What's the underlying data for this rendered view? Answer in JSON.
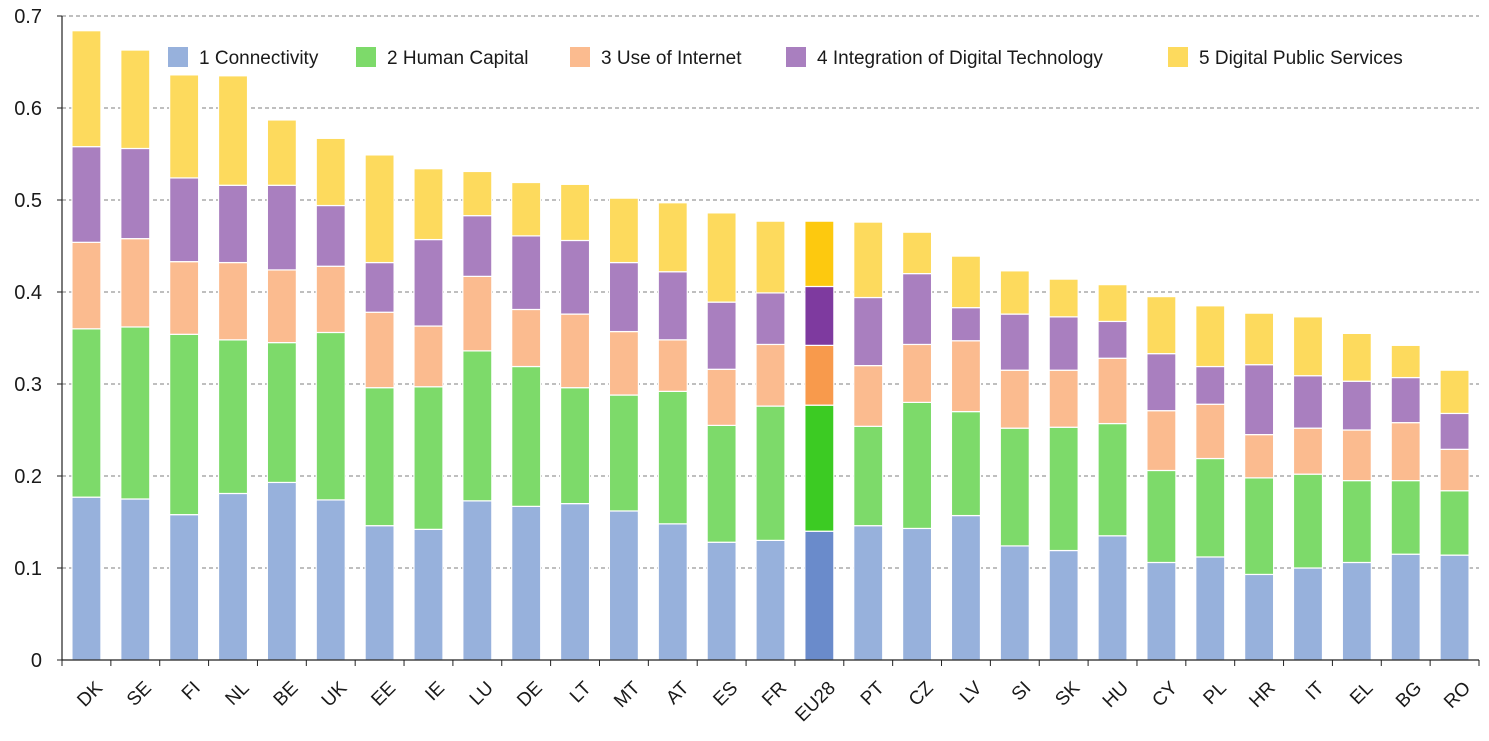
{
  "chart_data": {
    "type": "bar",
    "stacked": true,
    "title": "",
    "xlabel": "",
    "ylabel": "",
    "ylim": [
      0,
      0.7
    ],
    "yticks": [
      0,
      0.1,
      0.2,
      0.3,
      0.4,
      0.5,
      0.6,
      0.7
    ],
    "ytick_labels": [
      "0",
      "0.1",
      "0.2",
      "0.3",
      "0.4",
      "0.5",
      "0.6",
      "0.7"
    ],
    "grid": "horizontal dashed",
    "legend_position": "top",
    "highlight_category": "EU28",
    "categories": [
      "DK",
      "SE",
      "FI",
      "NL",
      "BE",
      "UK",
      "EE",
      "IE",
      "LU",
      "DE",
      "LT",
      "MT",
      "AT",
      "ES",
      "FR",
      "EU28",
      "PT",
      "CZ",
      "LV",
      "SI",
      "SK",
      "HU",
      "CY",
      "PL",
      "HR",
      "IT",
      "EL",
      "BG",
      "RO"
    ],
    "series": [
      {
        "name": "1 Connectivity",
        "color": "#97b1dc",
        "highlight_color": "#6a8bcb",
        "values": [
          0.177,
          0.175,
          0.158,
          0.181,
          0.193,
          0.174,
          0.146,
          0.142,
          0.173,
          0.167,
          0.17,
          0.162,
          0.148,
          0.128,
          0.13,
          0.14,
          0.146,
          0.143,
          0.157,
          0.124,
          0.119,
          0.135,
          0.106,
          0.112,
          0.093,
          0.1,
          0.106,
          0.115,
          0.114
        ]
      },
      {
        "name": "2 Human Capital",
        "color": "#7dda6a",
        "highlight_color": "#3ccb23",
        "values": [
          0.183,
          0.187,
          0.196,
          0.167,
          0.152,
          0.182,
          0.15,
          0.155,
          0.163,
          0.152,
          0.126,
          0.126,
          0.144,
          0.127,
          0.146,
          0.137,
          0.108,
          0.137,
          0.113,
          0.128,
          0.134,
          0.122,
          0.1,
          0.107,
          0.105,
          0.102,
          0.089,
          0.08,
          0.07
        ]
      },
      {
        "name": "3 Use of Internet",
        "color": "#fbbb8f",
        "highlight_color": "#f89a4c",
        "values": [
          0.094,
          0.096,
          0.079,
          0.084,
          0.079,
          0.072,
          0.082,
          0.066,
          0.081,
          0.062,
          0.08,
          0.069,
          0.056,
          0.061,
          0.067,
          0.065,
          0.066,
          0.063,
          0.077,
          0.063,
          0.062,
          0.071,
          0.065,
          0.059,
          0.047,
          0.05,
          0.055,
          0.063,
          0.045
        ]
      },
      {
        "name": "4 Integration of Digital Technology",
        "color": "#a97fbf",
        "highlight_color": "#7e3a9f",
        "values": [
          0.104,
          0.098,
          0.091,
          0.084,
          0.092,
          0.066,
          0.054,
          0.094,
          0.066,
          0.08,
          0.08,
          0.075,
          0.074,
          0.073,
          0.056,
          0.064,
          0.074,
          0.077,
          0.036,
          0.061,
          0.058,
          0.04,
          0.062,
          0.041,
          0.076,
          0.057,
          0.053,
          0.049,
          0.039
        ]
      },
      {
        "name": "5 Digital Public Services",
        "color": "#fdda5d",
        "highlight_color": "#fdc90f",
        "values": [
          0.126,
          0.107,
          0.112,
          0.119,
          0.071,
          0.073,
          0.117,
          0.077,
          0.048,
          0.058,
          0.061,
          0.07,
          0.075,
          0.097,
          0.078,
          0.071,
          0.082,
          0.045,
          0.056,
          0.047,
          0.041,
          0.04,
          0.062,
          0.066,
          0.056,
          0.064,
          0.052,
          0.035,
          0.047
        ]
      }
    ]
  }
}
